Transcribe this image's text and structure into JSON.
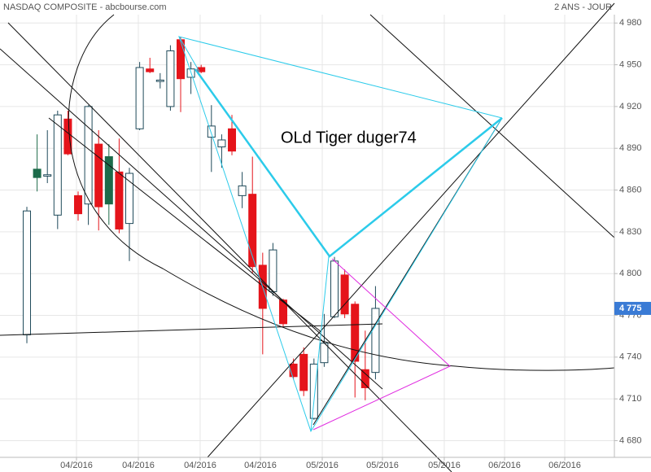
{
  "chart_data": {
    "type": "candlestick",
    "title": "NASDAQ COMPOSITE - abcbourse.com",
    "period": "2 ANS - JOUR",
    "annotation": "OLd Tiger duger74",
    "x": [
      0,
      1,
      2,
      3,
      4,
      5,
      6,
      7,
      8,
      9,
      10,
      11,
      12,
      13,
      14,
      15,
      16,
      17,
      18,
      19,
      20,
      21,
      22,
      23,
      24,
      25,
      26,
      27,
      28,
      29,
      30,
      31,
      32,
      33,
      34
    ],
    "open": [
      4756,
      4869,
      4870,
      4842,
      4911,
      4856,
      4850,
      4893,
      4850,
      4873,
      4836,
      4904,
      4947,
      4938,
      4920,
      4968,
      4941,
      4948,
      4898,
      4891,
      4904,
      4856,
      4857,
      4806,
      4787,
      4781,
      4735,
      4742,
      4696,
      4736,
      4769,
      4799,
      4778,
      4731,
      4729
    ],
    "high": [
      4848,
      4900,
      4903,
      4917,
      4917,
      4859,
      4921,
      4903,
      4893,
      4897,
      4876,
      4952,
      4955,
      4944,
      4964,
      4970,
      4952,
      4950,
      4921,
      4900,
      4914,
      4873,
      4884,
      4815,
      4822,
      4782,
      4739,
      4747,
      4739,
      4771,
      4812,
      4803,
      4780,
      4759,
      4791
    ],
    "low": [
      4750,
      4859,
      4865,
      4832,
      4885,
      4838,
      4835,
      4831,
      4835,
      4829,
      4809,
      4903,
      4944,
      4933,
      4917,
      4916,
      4929,
      4944,
      4873,
      4876,
      4885,
      4847,
      4800,
      4742,
      4784,
      4762,
      4724,
      4712,
      4695,
      4733,
      4768,
      4768,
      4711,
      4709,
      4724
    ],
    "close": [
      4845,
      4875,
      4871,
      4914,
      4886,
      4843,
      4920,
      4848,
      4884,
      4832,
      4872,
      4948,
      4945,
      4939,
      4960,
      4940,
      4947,
      4945,
      4906,
      4896,
      4888,
      4863,
      4805,
      4775,
      4817,
      4764,
      4726,
      4716,
      4735,
      4750,
      4809,
      4771,
      4737,
      4718,
      4775
    ],
    "colors": [
      "#ffffff",
      "#1c6b4a",
      "#ffffff",
      "#ffffff",
      "#e5141b",
      "#e5141b",
      "#ffffff",
      "#e5141b",
      "#1c6b4a",
      "#e5141b",
      "#ffffff",
      "#ffffff",
      "#e5141b",
      "#ffffff",
      "#ffffff",
      "#e5141b",
      "#ffffff",
      "#e5141b",
      "#ffffff",
      "#ffffff",
      "#e5141b",
      "#ffffff",
      "#e5141b",
      "#e5141b",
      "#ffffff",
      "#e5141b",
      "#e5141b",
      "#e5141b",
      "#ffffff",
      "#ffffff",
      "#ffffff",
      "#e5141b",
      "#e5141b",
      "#e5141b",
      "#ffffff"
    ],
    "last_price": {
      "value": 4775,
      "label": "4 775"
    },
    "last_price_color": "#3a7bd5",
    "xlim": [
      -2.62,
      57.3
    ],
    "ylim": [
      4668,
      4986
    ],
    "xticks": [
      {
        "value": 4.84,
        "label": "04/2016"
      },
      {
        "value": 10.87,
        "label": "04/2016"
      },
      {
        "value": 16.9,
        "label": "04/2016"
      },
      {
        "value": 22.78,
        "label": "04/2016"
      },
      {
        "value": 28.81,
        "label": "05/2016"
      },
      {
        "value": 34.68,
        "label": "05/2016"
      },
      {
        "value": 40.71,
        "label": "05/2016"
      },
      {
        "value": 46.59,
        "label": "06/2016"
      },
      {
        "value": 52.46,
        "label": "06/2016"
      }
    ],
    "yticks": [
      {
        "value": 4680,
        "label": "4 680"
      },
      {
        "value": 4710,
        "label": "4 710"
      },
      {
        "value": 4740,
        "label": "4 740"
      },
      {
        "value": 4770,
        "label": "4 770"
      },
      {
        "value": 4800,
        "label": "4 800"
      },
      {
        "value": 4830,
        "label": "4 830"
      },
      {
        "value": 4860,
        "label": "4 860"
      },
      {
        "value": 4890,
        "label": "4 890"
      },
      {
        "value": 4920,
        "label": "4 920"
      },
      {
        "value": 4950,
        "label": "4 950"
      },
      {
        "value": 4980,
        "label": "4 980"
      }
    ],
    "grid": true
  }
}
